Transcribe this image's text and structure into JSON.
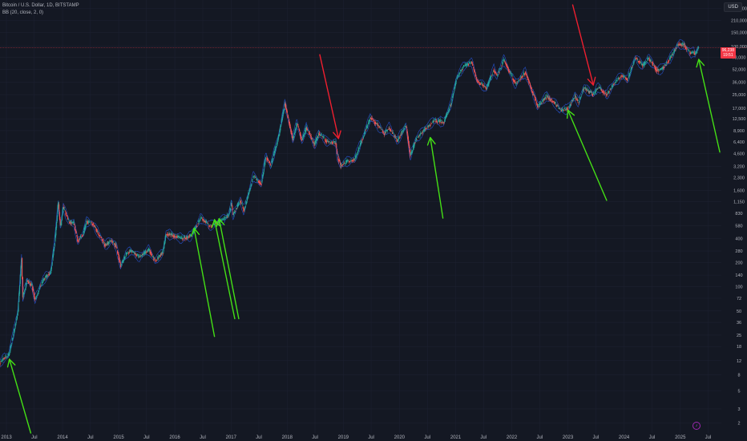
{
  "legend": {
    "symbol_line": "Bitcoin / U.S. Dollar, 1D, BITSTAMP",
    "indicator_line": "BB (20, close, 2, 0)"
  },
  "currency_label": "USD",
  "price_tag": {
    "price": "96,238",
    "countdown": "19:51"
  },
  "logo_text": "♪",
  "colors": {
    "background": "#141823",
    "grid": "#1c2030",
    "candle_up": "#26a69a",
    "candle_down": "#ef5350",
    "bb_band": "#2962ff",
    "arrow_green": "#44e015",
    "arrow_red": "#ef1f2f",
    "price_line": "#f23645",
    "axis_text": "#b2b5be"
  },
  "chart_data": {
    "type": "line",
    "title": "Bitcoin / U.S. Dollar, 1D, BITSTAMP",
    "xlabel": "",
    "ylabel": "",
    "y_scale": "log",
    "ylim": [
      1.5,
      380000
    ],
    "xlim": [
      "2012-11-20",
      "2025-09-25"
    ],
    "y_ticks": [
      "300,000",
      "210,000",
      "150,000",
      "100,000",
      "73,000",
      "52,000",
      "36,000",
      "25,000",
      "17,000",
      "12,500",
      "8,900",
      "6,400",
      "4,600",
      "3,200",
      "2,300",
      "1,600",
      "1,150",
      "830",
      "580",
      "400",
      "280",
      "200",
      "140",
      "100",
      "72",
      "50",
      "36",
      "25",
      "18",
      "12",
      "8",
      "5",
      "3",
      "2"
    ],
    "x_ticks": [
      {
        "date": "2013-01-01",
        "label": "2013"
      },
      {
        "date": "2013-07-01",
        "label": "Jul"
      },
      {
        "date": "2014-01-01",
        "label": "2014"
      },
      {
        "date": "2014-07-01",
        "label": "Jul"
      },
      {
        "date": "2015-01-01",
        "label": "2015"
      },
      {
        "date": "2015-07-01",
        "label": "Jul"
      },
      {
        "date": "2016-01-01",
        "label": "2016"
      },
      {
        "date": "2016-07-01",
        "label": "Jul"
      },
      {
        "date": "2017-01-01",
        "label": "2017"
      },
      {
        "date": "2017-07-01",
        "label": "Jul"
      },
      {
        "date": "2018-01-01",
        "label": "2018"
      },
      {
        "date": "2018-07-01",
        "label": "Jul"
      },
      {
        "date": "2019-01-01",
        "label": "2019"
      },
      {
        "date": "2019-07-01",
        "label": "Jul"
      },
      {
        "date": "2020-01-01",
        "label": "2020"
      },
      {
        "date": "2020-07-01",
        "label": "Jul"
      },
      {
        "date": "2021-01-01",
        "label": "2021"
      },
      {
        "date": "2021-07-01",
        "label": "Jul"
      },
      {
        "date": "2022-01-01",
        "label": "2022"
      },
      {
        "date": "2022-07-01",
        "label": "Jul"
      },
      {
        "date": "2023-01-01",
        "label": "2023"
      },
      {
        "date": "2023-07-01",
        "label": "Jul"
      },
      {
        "date": "2024-01-01",
        "label": "2024"
      },
      {
        "date": "2024-07-01",
        "label": "Jul"
      },
      {
        "date": "2025-01-01",
        "label": "2025"
      },
      {
        "date": "2025-07-01",
        "label": "Jul"
      }
    ],
    "last_price": 96238,
    "series": [
      {
        "points": [
          [
            "2012-11-20",
            11
          ],
          [
            "2012-12-15",
            13
          ],
          [
            "2013-01-15",
            14
          ],
          [
            "2013-02-15",
            26
          ],
          [
            "2013-03-15",
            47
          ],
          [
            "2013-04-09",
            230
          ],
          [
            "2013-04-17",
            75
          ],
          [
            "2013-05-15",
            120
          ],
          [
            "2013-06-15",
            105
          ],
          [
            "2013-07-05",
            70
          ],
          [
            "2013-08-15",
            110
          ],
          [
            "2013-09-15",
            135
          ],
          [
            "2013-10-15",
            150
          ],
          [
            "2013-11-10",
            350
          ],
          [
            "2013-12-04",
            1150
          ],
          [
            "2013-12-18",
            540
          ],
          [
            "2014-01-05",
            1000
          ],
          [
            "2014-02-10",
            650
          ],
          [
            "2014-03-15",
            620
          ],
          [
            "2014-04-10",
            370
          ],
          [
            "2014-05-15",
            460
          ],
          [
            "2014-06-05",
            650
          ],
          [
            "2014-07-15",
            620
          ],
          [
            "2014-08-18",
            480
          ],
          [
            "2014-10-05",
            330
          ],
          [
            "2014-11-15",
            380
          ],
          [
            "2014-12-15",
            320
          ],
          [
            "2015-01-14",
            180
          ],
          [
            "2015-02-15",
            250
          ],
          [
            "2015-03-15",
            280
          ],
          [
            "2015-05-15",
            235
          ],
          [
            "2015-07-15",
            290
          ],
          [
            "2015-08-25",
            210
          ],
          [
            "2015-10-15",
            270
          ],
          [
            "2015-11-05",
            460
          ],
          [
            "2015-12-15",
            440
          ],
          [
            "2016-02-15",
            400
          ],
          [
            "2016-04-15",
            430
          ],
          [
            "2016-06-17",
            720
          ],
          [
            "2016-08-15",
            580
          ],
          [
            "2016-10-15",
            640
          ],
          [
            "2016-12-15",
            780
          ],
          [
            "2017-01-04",
            1100
          ],
          [
            "2017-01-12",
            780
          ],
          [
            "2017-03-01",
            1200
          ],
          [
            "2017-03-25",
            900
          ],
          [
            "2017-05-25",
            2400
          ],
          [
            "2017-07-15",
            1900
          ],
          [
            "2017-08-15",
            4300
          ],
          [
            "2017-09-15",
            3200
          ],
          [
            "2017-11-05",
            7400
          ],
          [
            "2017-12-17",
            19500
          ],
          [
            "2018-02-06",
            6900
          ],
          [
            "2018-03-05",
            11000
          ],
          [
            "2018-04-06",
            6600
          ],
          [
            "2018-05-05",
            9700
          ],
          [
            "2018-06-28",
            5900
          ],
          [
            "2018-07-25",
            8200
          ],
          [
            "2018-09-15",
            6500
          ],
          [
            "2018-11-14",
            6300
          ],
          [
            "2018-11-20",
            4500
          ],
          [
            "2018-12-15",
            3250
          ],
          [
            "2019-01-15",
            3600
          ],
          [
            "2019-03-15",
            3900
          ],
          [
            "2019-05-15",
            7900
          ],
          [
            "2019-06-26",
            13000
          ],
          [
            "2019-08-15",
            10200
          ],
          [
            "2019-09-25",
            8200
          ],
          [
            "2019-10-26",
            9800
          ],
          [
            "2019-12-17",
            6600
          ],
          [
            "2020-02-13",
            10400
          ],
          [
            "2020-03-12",
            4300
          ],
          [
            "2020-04-15",
            6800
          ],
          [
            "2020-06-15",
            9400
          ],
          [
            "2020-08-15",
            11800
          ],
          [
            "2020-10-15",
            11400
          ],
          [
            "2020-11-30",
            19000
          ],
          [
            "2021-01-08",
            41000
          ],
          [
            "2021-02-20",
            56000
          ],
          [
            "2021-04-14",
            64000
          ],
          [
            "2021-05-20",
            37000
          ],
          [
            "2021-07-20",
            30000
          ],
          [
            "2021-09-06",
            52000
          ],
          [
            "2021-09-25",
            42000
          ],
          [
            "2021-11-10",
            68000
          ],
          [
            "2022-01-24",
            34000
          ],
          [
            "2022-03-29",
            47500
          ],
          [
            "2022-05-12",
            28000
          ],
          [
            "2022-06-18",
            18000
          ],
          [
            "2022-08-15",
            24000
          ],
          [
            "2022-10-15",
            19000
          ],
          [
            "2022-11-09",
            16000
          ],
          [
            "2022-12-30",
            16500
          ],
          [
            "2023-02-15",
            24000
          ],
          [
            "2023-03-10",
            20000
          ],
          [
            "2023-04-14",
            30500
          ],
          [
            "2023-06-15",
            25000
          ],
          [
            "2023-07-15",
            31000
          ],
          [
            "2023-09-11",
            25000
          ],
          [
            "2023-10-24",
            34000
          ],
          [
            "2023-12-15",
            43000
          ],
          [
            "2024-01-23",
            39000
          ],
          [
            "2024-03-14",
            73000
          ],
          [
            "2024-05-01",
            57000
          ],
          [
            "2024-06-07",
            71000
          ],
          [
            "2024-08-05",
            50000
          ],
          [
            "2024-09-06",
            53000
          ],
          [
            "2024-10-29",
            72000
          ],
          [
            "2024-12-17",
            107000
          ],
          [
            "2025-01-20",
            105000
          ],
          [
            "2025-02-25",
            88000
          ],
          [
            "2025-03-10",
            82000
          ],
          [
            "2025-03-28",
            86000
          ],
          [
            "2025-04-08",
            79000
          ],
          [
            "2025-04-22",
            93000
          ],
          [
            "2025-05-02",
            96238
          ]
        ]
      }
    ],
    "annotations": [
      {
        "type": "arrow",
        "color": "green",
        "from": [
          "2013-06-08",
          1.5
        ],
        "to": [
          "2013-01-20",
          12.5
        ]
      },
      {
        "type": "arrow",
        "color": "green",
        "from": [
          "2016-09-15",
          24
        ],
        "to": [
          "2016-05-05",
          540
        ]
      },
      {
        "type": "arrow",
        "color": "green",
        "from": [
          "2017-01-25",
          40
        ],
        "to": [
          "2016-09-15",
          690
        ]
      },
      {
        "type": "arrow",
        "color": "green",
        "from": [
          "2017-02-20",
          40
        ],
        "to": [
          "2016-10-15",
          710
        ]
      },
      {
        "type": "arrow",
        "color": "red",
        "from": [
          "2018-08-01",
          79000
        ],
        "to": [
          "2018-12-01",
          7100
        ]
      },
      {
        "type": "arrow",
        "color": "green",
        "from": [
          "2020-10-10",
          720
        ],
        "to": [
          "2020-07-20",
          7300
        ]
      },
      {
        "type": "arrow",
        "color": "red",
        "from": [
          "2023-02-01",
          330000
        ],
        "to": [
          "2023-06-15",
          33000
        ]
      },
      {
        "type": "arrow",
        "color": "green",
        "from": [
          "2023-09-10",
          1200
        ],
        "to": [
          "2023-01-01",
          16000
        ]
      },
      {
        "type": "arrow",
        "color": "green",
        "from": [
          "2025-09-15",
          4800
        ],
        "to": [
          "2025-05-01",
          69000
        ]
      }
    ]
  }
}
